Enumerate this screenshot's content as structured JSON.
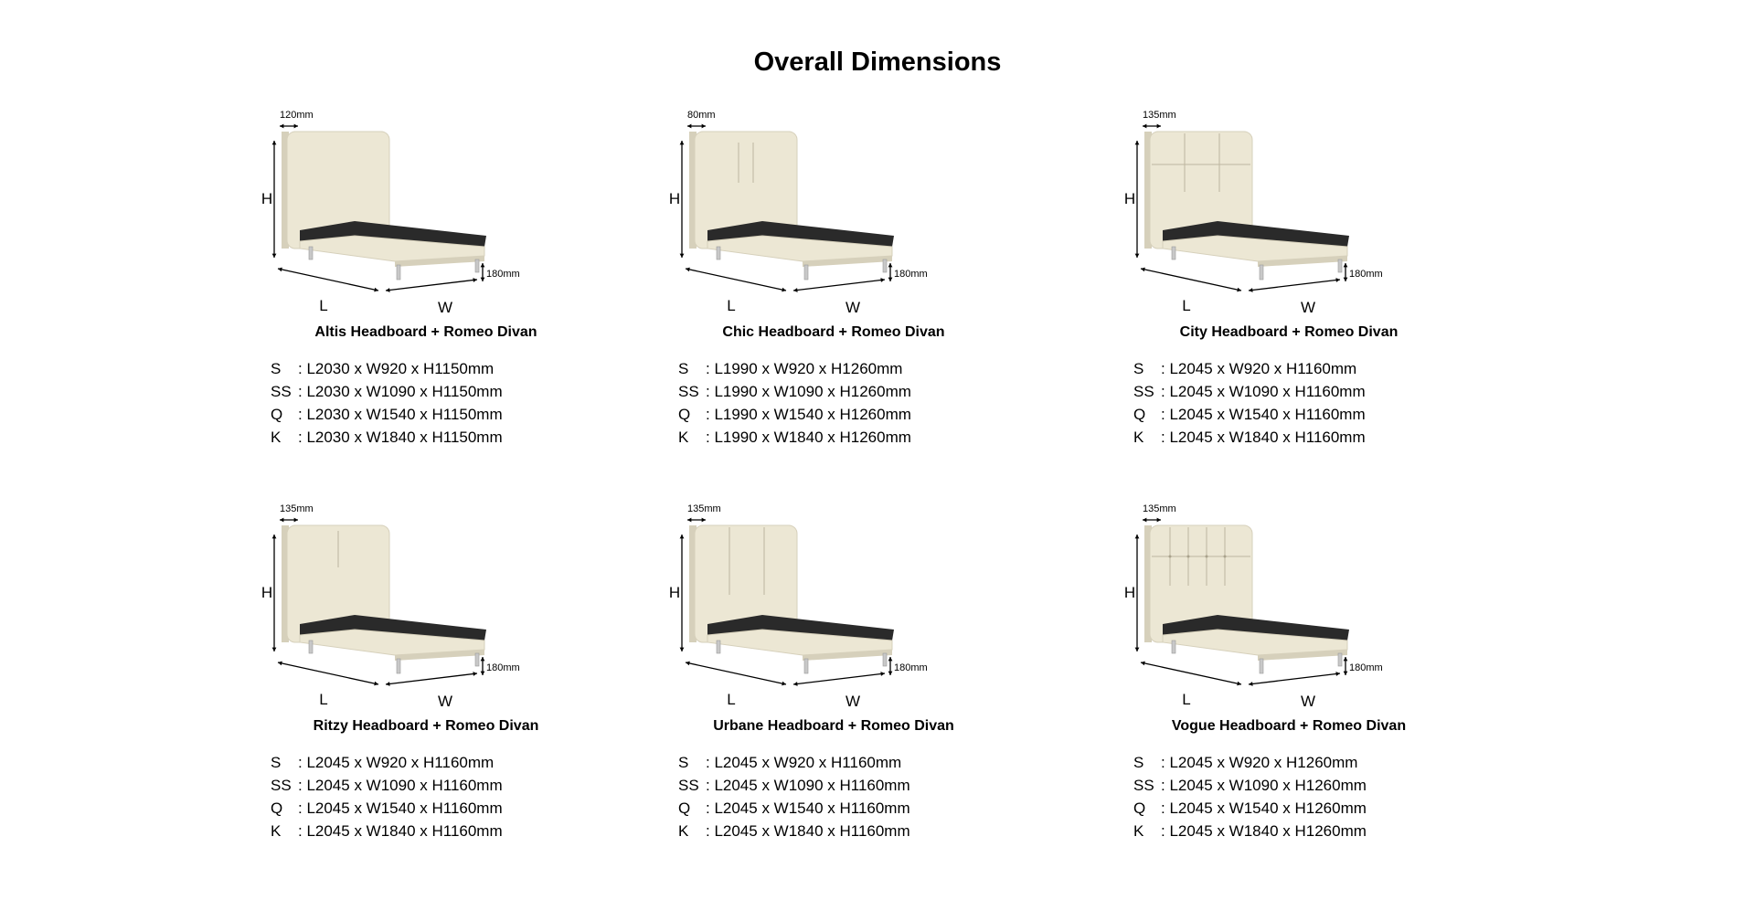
{
  "title": "Overall Dimensions",
  "labels": {
    "height": "H",
    "length": "L",
    "width": "W",
    "leg_height": "180mm"
  },
  "colors": {
    "upholstery": "#ece7d4",
    "upholstery_shade": "#d6d0bb",
    "platform": "#2a2a2a",
    "leg": "#c8c8c8",
    "text": "#000000"
  },
  "products": [
    {
      "name": "Altis Headboard + Romeo Divan",
      "headboard_thickness": "120mm",
      "headboard_style": "plain",
      "dimensions": [
        {
          "code": "S",
          "value": ": L2030 x W920 x H1150mm"
        },
        {
          "code": "SS",
          "value": ": L2030 x W1090 x H1150mm"
        },
        {
          "code": "Q",
          "value": ": L2030 x W1540 x H1150mm"
        },
        {
          "code": "K",
          "value": ": L2030 x W1840 x H1150mm"
        }
      ]
    },
    {
      "name": "Chic Headboard + Romeo Divan",
      "headboard_thickness": "80mm",
      "headboard_style": "two-center-lines",
      "dimensions": [
        {
          "code": "S",
          "value": ": L1990 x W920 x H1260mm"
        },
        {
          "code": "SS",
          "value": ": L1990 x W1090 x H1260mm"
        },
        {
          "code": "Q",
          "value": ": L1990 x W1540 x H1260mm"
        },
        {
          "code": "K",
          "value": ": L1990 x W1840 x H1260mm"
        }
      ]
    },
    {
      "name": "City Headboard + Romeo Divan",
      "headboard_thickness": "135mm",
      "headboard_style": "grid",
      "dimensions": [
        {
          "code": "S",
          "value": ": L2045 x W920 x H1160mm"
        },
        {
          "code": "SS",
          "value": ": L2045 x W1090 x H1160mm"
        },
        {
          "code": "Q",
          "value": ": L2045 x W1540 x H1160mm"
        },
        {
          "code": "K",
          "value": ": L2045 x W1840 x H1160mm"
        }
      ]
    },
    {
      "name": "Ritzy Headboard + Romeo Divan",
      "headboard_thickness": "135mm",
      "headboard_style": "single-line",
      "dimensions": [
        {
          "code": "S",
          "value": ": L2045 x W920 x H1160mm"
        },
        {
          "code": "SS",
          "value": ": L2045 x W1090 x H1160mm"
        },
        {
          "code": "Q",
          "value": ": L2045 x W1540 x H1160mm"
        },
        {
          "code": "K",
          "value": ": L2045 x W1840 x H1160mm"
        }
      ]
    },
    {
      "name": "Urbane Headboard + Romeo Divan",
      "headboard_thickness": "135mm",
      "headboard_style": "vertical-channels",
      "dimensions": [
        {
          "code": "S",
          "value": ": L2045 x W920 x H1160mm"
        },
        {
          "code": "SS",
          "value": ": L2045 x W1090 x H1160mm"
        },
        {
          "code": "Q",
          "value": ": L2045 x W1540 x H1160mm"
        },
        {
          "code": "K",
          "value": ": L2045 x W1840 x H1160mm"
        }
      ]
    },
    {
      "name": "Vogue Headboard + Romeo Divan",
      "headboard_thickness": "135mm",
      "headboard_style": "tufted-grid",
      "dimensions": [
        {
          "code": "S",
          "value": ": L2045 x W920 x H1260mm"
        },
        {
          "code": "SS",
          "value": ": L2045 x W1090 x H1260mm"
        },
        {
          "code": "Q",
          "value": ": L2045 x W1540 x H1260mm"
        },
        {
          "code": "K",
          "value": ": L2045 x W1840 x H1260mm"
        }
      ]
    }
  ]
}
